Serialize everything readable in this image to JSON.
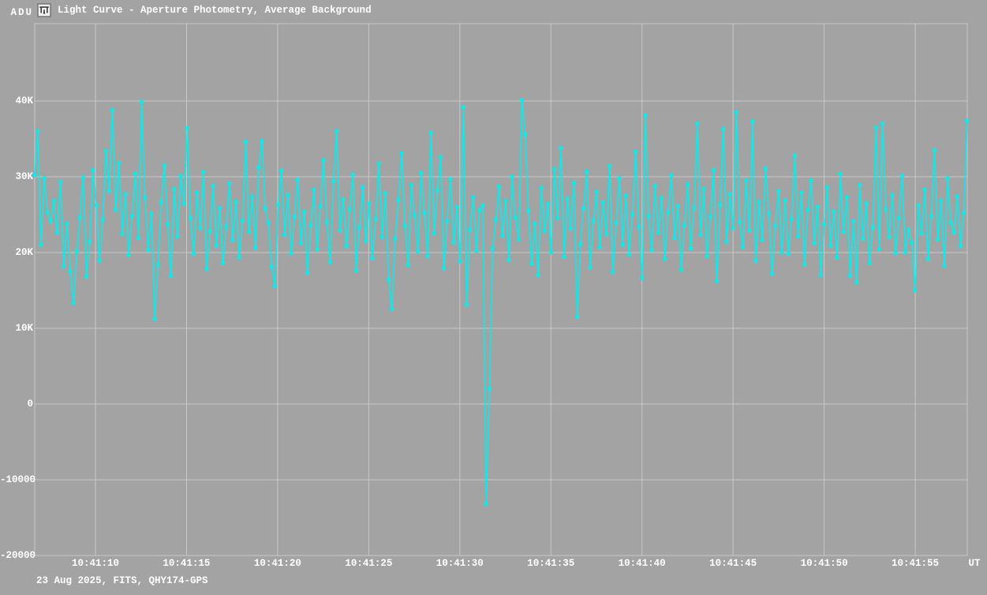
{
  "header": {
    "y_axis_unit": "ADU",
    "icon": "light-curve-icon",
    "title": "Light Curve - Aperture Photometry, Average Background"
  },
  "footer": {
    "info": "23 Aug 2025, FITS, QHY174-GPS",
    "x_axis_unit": "UT"
  },
  "colors": {
    "background": "#a3a3a3",
    "grid": "#c8c8c8",
    "curve": "#00f0f0",
    "text": "#ffffff",
    "icon_glyph": "#3a3a3a",
    "icon_bg": "#f2f2f2"
  },
  "chart_data": {
    "type": "line",
    "title": "Light Curve - Aperture Photometry, Average Background",
    "xlabel": "UT",
    "ylabel": "ADU",
    "legend": [],
    "grid": true,
    "marker": "square",
    "x_tick_labels": [
      "10:41:10",
      "10:41:15",
      "10:41:20",
      "10:41:25",
      "10:41:30",
      "10:41:35",
      "10:41:40",
      "10:41:45",
      "10:41:50",
      "10:41:55"
    ],
    "y_tick_labels": [
      "40K",
      "30K",
      "20K",
      "10K",
      "0",
      "-10000",
      "-20000"
    ],
    "y_tick_values": [
      40000,
      30000,
      20000,
      10000,
      0,
      -10000,
      -20000
    ],
    "ylim": [
      -20000,
      50200
    ],
    "x_start_time_ut": "10:41:06.7",
    "x_end_time_ut": "10:41:57.8",
    "sample_interval_s": 0.178,
    "n_points": 288,
    "min_value_adu": -13229,
    "max_value_adu": 40100,
    "dip_time_ut": "10:41:31.5",
    "values_adu": [
      30200,
      36000,
      21000,
      29800,
      25300,
      24100,
      26800,
      22600,
      29300,
      18200,
      23800,
      17500,
      13300,
      20100,
      24600,
      29900,
      16800,
      21400,
      30900,
      26200,
      18900,
      24300,
      33400,
      28100,
      38800,
      25600,
      31800,
      22400,
      27700,
      19600,
      24800,
      30400,
      21900,
      39900,
      27200,
      20300,
      25100,
      11200,
      18400,
      26600,
      31500,
      23700,
      16900,
      28400,
      22100,
      30100,
      26400,
      36400,
      24500,
      19800,
      27900,
      23200,
      30600,
      17800,
      22800,
      28800,
      20900,
      25900,
      18600,
      23400,
      29100,
      21600,
      26700,
      19300,
      24200,
      34600,
      22700,
      27400,
      20600,
      31200,
      34700,
      25800,
      23900,
      18100,
      15500,
      26300,
      30800,
      22300,
      27600,
      19900,
      24700,
      29600,
      21200,
      25400,
      17300,
      23600,
      28300,
      20400,
      26100,
      32200,
      24000,
      18700,
      29400,
      36000,
      22900,
      27000,
      20800,
      25700,
      30300,
      17600,
      23300,
      28600,
      21500,
      26500,
      19200,
      24400,
      31700,
      22000,
      27800,
      16400,
      12500,
      21800,
      26900,
      33100,
      23500,
      18300,
      28900,
      24900,
      20100,
      30500,
      25200,
      19500,
      35800,
      22500,
      28200,
      32600,
      17900,
      24100,
      29700,
      21300,
      26000,
      18800,
      39200,
      13100,
      23000,
      27300,
      20200,
      25600,
      26200,
      -13229,
      2000,
      20500,
      24300,
      28700,
      22200,
      26800,
      19000,
      30000,
      24600,
      21700,
      40100,
      35600,
      25500,
      18500,
      23800,
      17000,
      28500,
      22800,
      26400,
      20000,
      31000,
      24500,
      33800,
      19400,
      27100,
      23100,
      29200,
      11500,
      21100,
      25800,
      30700,
      18000,
      24200,
      28000,
      20700,
      26600,
      22400,
      31400,
      17400,
      23900,
      29800,
      21000,
      27500,
      19700,
      25000,
      33300,
      23400,
      16600,
      38100,
      24800,
      20300,
      28800,
      22600,
      27200,
      19100,
      25300,
      30200,
      21900,
      26100,
      17700,
      23600,
      29000,
      20500,
      25900,
      37000,
      22300,
      28400,
      19500,
      24700,
      30900,
      16200,
      26300,
      36300,
      21400,
      27700,
      23200,
      38500,
      24000,
      20700,
      29500,
      22900,
      37300,
      18900,
      26700,
      21600,
      31100,
      25100,
      17200,
      23500,
      28100,
      20000,
      26900,
      19800,
      24400,
      32800,
      22100,
      27900,
      18400,
      25600,
      29500,
      21200,
      26000,
      17000,
      23700,
      28600,
      20900,
      25400,
      19300,
      30400,
      22700,
      27300,
      16900,
      24100,
      16000,
      28900,
      21800,
      26500,
      18600,
      23300,
      36500,
      20400,
      37000,
      25700,
      22000,
      27600,
      19900,
      24500,
      30100,
      20000,
      23000,
      21300,
      15000,
      26200,
      22500,
      28300,
      19100,
      24800,
      33500,
      21700,
      26800,
      18200,
      29800,
      23900,
      22600,
      27400,
      20800,
      25200,
      37400
    ]
  }
}
